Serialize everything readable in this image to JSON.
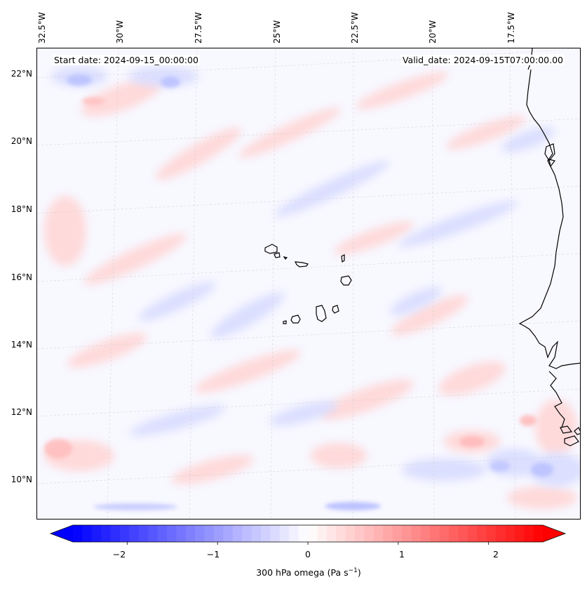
{
  "map": {
    "lon_labels": [
      "32.5°W",
      "30°W",
      "27.5°W",
      "25°W",
      "22.5°W",
      "20°W",
      "17.5°W"
    ],
    "lat_labels": [
      "22°N",
      "20°N",
      "18°N",
      "16°N",
      "14°N",
      "12°N",
      "10°N"
    ],
    "start_date": "Start date: 2024-09-15_00:00:00",
    "valid_date": "Valid_date: 2024-09-15T07:00:00.00",
    "coastline_color": "#000000",
    "gridline_color": "#cccccc"
  },
  "colorbar": {
    "ticks": [
      "−2",
      "−1",
      "0",
      "1",
      "2"
    ],
    "label_prefix": "300 hPa omega (Pa s",
    "label_exp": "−1",
    "label_suffix": ")",
    "colormap": "bwr",
    "range": [
      -2.6,
      2.6
    ],
    "min_color": "#0000ff",
    "mid_color": "#ffffff",
    "max_color": "#ff0000"
  }
}
